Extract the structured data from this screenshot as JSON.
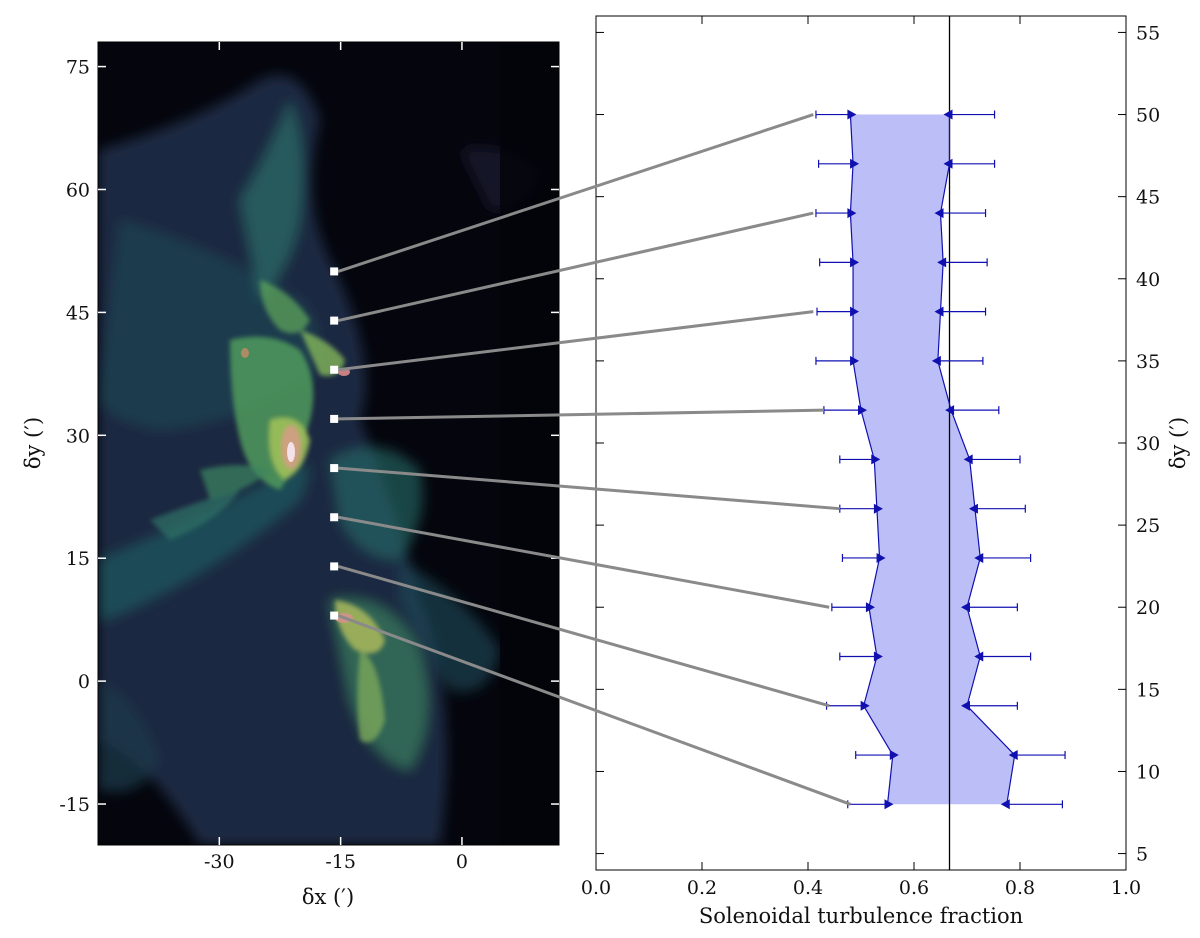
{
  "chart_data": [
    {
      "type": "heatmap",
      "xlabel": "δx (′)",
      "ylabel": "δy (′)",
      "xlim": [
        -45,
        12
      ],
      "ylim": [
        -20,
        78
      ],
      "x_ticks": [
        -30,
        -15,
        0
      ],
      "y_ticks": [
        75,
        60,
        45,
        30,
        15,
        0,
        -15
      ],
      "colormap": "dark navy to teal to yellow-green to pink-white",
      "markers": {
        "x": -15.8,
        "y": [
          50,
          44,
          38,
          32,
          26,
          20,
          14,
          8
        ]
      },
      "connector_targets": [
        {
          "marker_y": 50,
          "to_fraction": 0.41,
          "to_y": 50
        },
        {
          "marker_y": 44,
          "to_fraction": 0.41,
          "to_y": 44
        },
        {
          "marker_y": 38,
          "to_fraction": 0.41,
          "to_y": 38
        },
        {
          "marker_y": 32,
          "to_fraction": 0.43,
          "to_y": 32
        },
        {
          "marker_y": 26,
          "to_fraction": 0.46,
          "to_y": 26
        },
        {
          "marker_y": 20,
          "to_fraction": 0.44,
          "to_y": 20
        },
        {
          "marker_y": 14,
          "to_fraction": 0.44,
          "to_y": 14
        },
        {
          "marker_y": 8,
          "to_fraction": 0.48,
          "to_y": 8
        }
      ]
    },
    {
      "type": "line",
      "xlabel": "Solenoidal turbulence fraction",
      "ylabel": "δy (′)",
      "xlim": [
        0.0,
        1.0
      ],
      "ylim": [
        4,
        56
      ],
      "x_ticks": [
        "0.0",
        "0.2",
        "0.4",
        "0.6",
        "0.8",
        "1.0"
      ],
      "y_ticks": [
        5,
        10,
        15,
        20,
        25,
        30,
        35,
        40,
        45,
        50,
        55
      ],
      "reference_line_x": 0.667,
      "series": [
        {
          "role": "lower bound",
          "y": [
            50,
            47,
            44,
            41,
            38,
            35,
            32,
            29,
            26,
            23,
            20,
            17,
            14,
            11,
            8
          ],
          "x": [
            0.48,
            0.485,
            0.48,
            0.485,
            0.485,
            0.485,
            0.5,
            0.525,
            0.53,
            0.535,
            0.515,
            0.53,
            0.505,
            0.56,
            0.55
          ],
          "err_left": [
            0.065,
            0.065,
            0.065,
            0.063,
            0.068,
            0.07,
            0.07,
            0.065,
            0.07,
            0.07,
            0.07,
            0.07,
            0.07,
            0.07,
            0.075
          ]
        },
        {
          "role": "upper bound",
          "y": [
            50,
            47,
            44,
            41,
            38,
            35,
            32,
            29,
            26,
            23,
            20,
            17,
            14,
            11,
            8
          ],
          "x": [
            0.667,
            0.667,
            0.65,
            0.655,
            0.65,
            0.645,
            0.67,
            0.705,
            0.715,
            0.725,
            0.7,
            0.725,
            0.7,
            0.79,
            0.775
          ],
          "err_right": [
            0.085,
            0.085,
            0.085,
            0.083,
            0.085,
            0.085,
            0.09,
            0.095,
            0.095,
            0.095,
            0.095,
            0.095,
            0.095,
            0.095,
            0.105
          ]
        }
      ],
      "band_fill": "#b8baf7",
      "marker_color": "#1010b0"
    }
  ]
}
